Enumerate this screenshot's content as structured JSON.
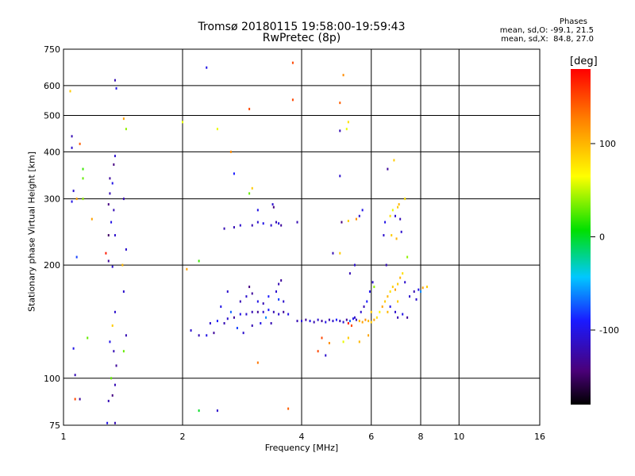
{
  "header": {
    "title_line1": "Tromsø 20180115 19:58:00-19:59:43",
    "title_line2": "RwPretec (8p)"
  },
  "phase_info": {
    "title": "Phases",
    "line_o": "mean, sd,O: -99.1, 21.5",
    "line_x": "mean, sd,X:  84.8, 27.0"
  },
  "colorbar": {
    "unit_label": "[deg]",
    "tick_labels": [
      "100",
      "0",
      "-100"
    ],
    "tick_values": [
      100,
      0,
      -100
    ],
    "range": [
      -180,
      180
    ]
  },
  "chart_data": {
    "type": "scatter",
    "xlabel": "Frequency [MHz]",
    "ylabel": "Stationary phase Virtual Height [km]",
    "x_scale": "log",
    "y_scale": "log",
    "xlim": [
      1,
      16
    ],
    "ylim": [
      75,
      750
    ],
    "x_ticks": [
      1,
      2,
      4,
      6,
      8,
      10,
      16
    ],
    "x_tick_labels": [
      "1",
      "2",
      "4",
      "6",
      "8",
      "10",
      "16"
    ],
    "y_ticks": [
      75,
      100,
      200,
      300,
      400,
      500,
      600,
      750
    ],
    "y_tick_labels": [
      "75",
      "100",
      "200",
      "300",
      "400",
      "500",
      "600",
      "750"
    ],
    "grid": true,
    "color_by": "phase [deg]",
    "points": [
      [
        1.04,
        580,
        90
      ],
      [
        1.05,
        410,
        -110
      ],
      [
        1.05,
        440,
        -120
      ],
      [
        1.06,
        315,
        -110
      ],
      [
        1.05,
        295,
        -100
      ],
      [
        1.08,
        300,
        110
      ],
      [
        1.1,
        420,
        140
      ],
      [
        1.12,
        360,
        20
      ],
      [
        1.12,
        340,
        30
      ],
      [
        1.12,
        300,
        40
      ],
      [
        1.18,
        265,
        110
      ],
      [
        1.08,
        210,
        -80
      ],
      [
        1.15,
        128,
        30
      ],
      [
        1.06,
        120,
        -100
      ],
      [
        1.07,
        102,
        -120
      ],
      [
        1.07,
        88,
        150
      ],
      [
        1.1,
        88,
        -130
      ],
      [
        1.06,
        74,
        -140
      ],
      [
        1.35,
        620,
        -120
      ],
      [
        1.36,
        590,
        -100
      ],
      [
        1.35,
        390,
        -110
      ],
      [
        1.34,
        370,
        -140
      ],
      [
        1.31,
        340,
        -130
      ],
      [
        1.33,
        330,
        -100
      ],
      [
        1.31,
        310,
        -120
      ],
      [
        1.3,
        290,
        -140
      ],
      [
        1.34,
        280,
        -120
      ],
      [
        1.32,
        260,
        -100
      ],
      [
        1.3,
        240,
        -150
      ],
      [
        1.35,
        240,
        -110
      ],
      [
        1.28,
        215,
        170
      ],
      [
        1.3,
        205,
        -130
      ],
      [
        1.33,
        198,
        -110
      ],
      [
        1.35,
        150,
        -110
      ],
      [
        1.33,
        138,
        90
      ],
      [
        1.31,
        125,
        -100
      ],
      [
        1.34,
        118,
        -120
      ],
      [
        1.36,
        108,
        -130
      ],
      [
        1.32,
        100,
        30
      ],
      [
        1.35,
        96,
        -120
      ],
      [
        1.33,
        90,
        -140
      ],
      [
        1.3,
        87,
        -120
      ],
      [
        1.35,
        76,
        -120
      ],
      [
        1.29,
        76,
        -100
      ],
      [
        1.42,
        490,
        110
      ],
      [
        1.44,
        460,
        40
      ],
      [
        1.42,
        300,
        -120
      ],
      [
        1.44,
        220,
        -110
      ],
      [
        1.41,
        200,
        100
      ],
      [
        1.42,
        170,
        -110
      ],
      [
        1.44,
        130,
        -120
      ],
      [
        1.42,
        118,
        30
      ],
      [
        2.0,
        480,
        60
      ],
      [
        2.05,
        195,
        110
      ],
      [
        2.2,
        205,
        20
      ],
      [
        2.3,
        670,
        -100
      ],
      [
        2.45,
        460,
        60
      ],
      [
        2.65,
        400,
        120
      ],
      [
        2.7,
        350,
        -90
      ],
      [
        2.95,
        520,
        150
      ],
      [
        2.95,
        310,
        30
      ],
      [
        3.0,
        320,
        90
      ],
      [
        3.8,
        690,
        150
      ],
      [
        3.8,
        550,
        150
      ],
      [
        2.45,
        82,
        -110
      ],
      [
        2.2,
        82,
        0
      ],
      [
        3.7,
        83,
        140
      ],
      [
        3.1,
        110,
        130
      ],
      [
        2.55,
        250,
        -120
      ],
      [
        2.7,
        252,
        -120
      ],
      [
        2.8,
        255,
        -110
      ],
      [
        3.0,
        255,
        -120
      ],
      [
        3.1,
        260,
        -110
      ],
      [
        3.2,
        258,
        -100
      ],
      [
        3.35,
        255,
        -110
      ],
      [
        3.45,
        260,
        -120
      ],
      [
        3.5,
        258,
        -105
      ],
      [
        3.55,
        255,
        -130
      ],
      [
        3.4,
        285,
        -140
      ],
      [
        3.38,
        290,
        -110
      ],
      [
        3.1,
        280,
        -100
      ],
      [
        3.9,
        260,
        -120
      ],
      [
        2.1,
        134,
        -110
      ],
      [
        2.2,
        130,
        -120
      ],
      [
        2.3,
        130,
        -100
      ],
      [
        2.4,
        132,
        -130
      ],
      [
        2.35,
        140,
        -110
      ],
      [
        2.45,
        142,
        -90
      ],
      [
        2.55,
        140,
        -120
      ],
      [
        2.6,
        144,
        -110
      ],
      [
        2.7,
        145,
        -130
      ],
      [
        2.8,
        148,
        -100
      ],
      [
        2.9,
        148,
        -110
      ],
      [
        3.0,
        150,
        -120
      ],
      [
        3.1,
        150,
        -130
      ],
      [
        3.2,
        150,
        -110
      ],
      [
        3.3,
        152,
        -90
      ],
      [
        3.4,
        150,
        -120
      ],
      [
        3.5,
        148,
        -110
      ],
      [
        3.6,
        150,
        -130
      ],
      [
        3.7,
        148,
        -100
      ],
      [
        2.8,
        160,
        -120
      ],
      [
        2.9,
        165,
        -110
      ],
      [
        3.0,
        168,
        -130
      ],
      [
        3.1,
        160,
        -100
      ],
      [
        3.2,
        158,
        -120
      ],
      [
        3.3,
        165,
        -90
      ],
      [
        3.45,
        170,
        -110
      ],
      [
        3.5,
        178,
        -120
      ],
      [
        3.55,
        182,
        -130
      ],
      [
        2.6,
        170,
        -110
      ],
      [
        2.5,
        155,
        -100
      ],
      [
        2.95,
        175,
        -140
      ],
      [
        3.0,
        138,
        -120
      ],
      [
        2.75,
        136,
        -80
      ],
      [
        2.85,
        132,
        -110
      ],
      [
        3.15,
        140,
        -100
      ],
      [
        3.35,
        140,
        -120
      ],
      [
        3.5,
        162,
        -80
      ],
      [
        3.6,
        160,
        -110
      ],
      [
        3.25,
        145,
        -60
      ],
      [
        2.65,
        150,
        -70
      ],
      [
        3.9,
        142,
        -120
      ],
      [
        4.0,
        142,
        -110
      ],
      [
        4.1,
        143,
        -130
      ],
      [
        4.2,
        142,
        -100
      ],
      [
        4.3,
        141,
        -120
      ],
      [
        4.4,
        143,
        -110
      ],
      [
        4.5,
        142,
        -130
      ],
      [
        4.6,
        141,
        -100
      ],
      [
        4.7,
        143,
        -120
      ],
      [
        4.8,
        142,
        -110
      ],
      [
        4.9,
        143,
        -90
      ],
      [
        5.0,
        142,
        -120
      ],
      [
        5.1,
        141,
        -110
      ],
      [
        5.2,
        143,
        -130
      ],
      [
        5.3,
        142,
        -70
      ],
      [
        5.4,
        144,
        -100
      ],
      [
        5.5,
        143,
        -120
      ],
      [
        5.6,
        142,
        100
      ],
      [
        5.7,
        141,
        110
      ],
      [
        5.8,
        143,
        120
      ],
      [
        5.9,
        142,
        100
      ],
      [
        6.0,
        141,
        90
      ],
      [
        6.1,
        143,
        110
      ],
      [
        5.25,
        140,
        170
      ],
      [
        5.35,
        138,
        150
      ],
      [
        5.45,
        145,
        -110
      ],
      [
        5.65,
        150,
        -110
      ],
      [
        5.75,
        155,
        -120
      ],
      [
        5.85,
        160,
        -90
      ],
      [
        5.95,
        170,
        -100
      ],
      [
        6.05,
        180,
        -110
      ],
      [
        6.1,
        175,
        40
      ],
      [
        6.0,
        150,
        90
      ],
      [
        6.2,
        145,
        80
      ],
      [
        6.3,
        150,
        70
      ],
      [
        6.5,
        160,
        90
      ],
      [
        6.6,
        165,
        100
      ],
      [
        6.7,
        170,
        80
      ],
      [
        6.8,
        175,
        90
      ],
      [
        6.9,
        172,
        110
      ],
      [
        7.0,
        178,
        90
      ],
      [
        7.1,
        185,
        100
      ],
      [
        7.2,
        190,
        80
      ],
      [
        7.3,
        180,
        -110
      ],
      [
        6.4,
        155,
        110
      ],
      [
        6.7,
        155,
        -100
      ],
      [
        6.9,
        150,
        -110
      ],
      [
        7.0,
        145,
        -120
      ],
      [
        7.2,
        148,
        -100
      ],
      [
        7.4,
        145,
        -130
      ],
      [
        7.0,
        160,
        90
      ],
      [
        6.6,
        150,
        100
      ],
      [
        7.5,
        165,
        -110
      ],
      [
        7.7,
        170,
        -120
      ],
      [
        7.9,
        172,
        -100
      ],
      [
        8.1,
        174,
        110
      ],
      [
        8.3,
        175,
        90
      ],
      [
        8.0,
        170,
        -60
      ],
      [
        7.8,
        162,
        -110
      ],
      [
        6.5,
        260,
        -100
      ],
      [
        6.7,
        270,
        80
      ],
      [
        6.8,
        280,
        60
      ],
      [
        6.9,
        270,
        -110
      ],
      [
        7.0,
        285,
        90
      ],
      [
        7.1,
        265,
        -120
      ],
      [
        7.05,
        290,
        100
      ],
      [
        6.75,
        240,
        90
      ],
      [
        6.95,
        235,
        100
      ],
      [
        7.15,
        245,
        -110
      ],
      [
        7.3,
        300,
        80
      ],
      [
        6.45,
        240,
        -110
      ],
      [
        6.55,
        200,
        -120
      ],
      [
        6.6,
        360,
        -130
      ],
      [
        6.85,
        380,
        90
      ],
      [
        7.4,
        210,
        40
      ],
      [
        5.0,
        345,
        -110
      ],
      [
        5.05,
        260,
        -140
      ],
      [
        5.0,
        455,
        -120
      ],
      [
        5.2,
        460,
        60
      ],
      [
        5.25,
        480,
        80
      ],
      [
        5.1,
        640,
        120
      ],
      [
        5.0,
        540,
        140
      ],
      [
        4.8,
        215,
        -120
      ],
      [
        5.0,
        215,
        90
      ],
      [
        5.25,
        262,
        90
      ],
      [
        5.5,
        265,
        120
      ],
      [
        5.6,
        270,
        -110
      ],
      [
        5.7,
        280,
        -100
      ],
      [
        5.45,
        200,
        -110
      ],
      [
        5.3,
        190,
        -120
      ],
      [
        4.5,
        128,
        150
      ],
      [
        4.7,
        124,
        120
      ],
      [
        5.1,
        125,
        60
      ],
      [
        5.25,
        128,
        90
      ],
      [
        5.6,
        125,
        100
      ],
      [
        5.9,
        130,
        110
      ],
      [
        4.4,
        118,
        150
      ],
      [
        4.6,
        115,
        -110
      ]
    ]
  }
}
